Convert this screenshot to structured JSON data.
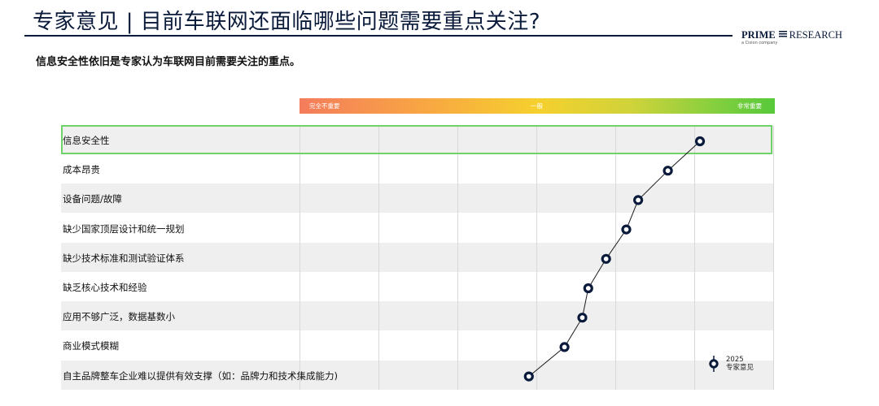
{
  "header": {
    "title": "专家意见 | 目前车联网还面临哪些问题需要重点关注?",
    "brand_bold": "PRIME",
    "brand_rest": "RESEARCH",
    "brand_sub": "a Cision company"
  },
  "subtitle": "信息安全性依旧是专家认为车联网目前需要关注的重点。",
  "scale": {
    "low_label": "完全不重要",
    "mid_label": "一般",
    "high_label": "非常重要"
  },
  "legend": {
    "year": "2025",
    "label": "专家意见"
  },
  "colors": {
    "marker": "#0a1a3a",
    "highlight": "#6fd36a"
  },
  "chart_data": {
    "type": "line",
    "title": "",
    "xlabel": "",
    "ylabel": "",
    "x_scale": "importance",
    "xlim": [
      0,
      6
    ],
    "categories": [
      "信息安全性",
      "成本昂贵",
      "设备问题/故障",
      "缺少国家顶层设计和统一规划",
      "缺少技术标准和测试验证体系",
      "缺乏核心技术和经验",
      "应用不够广泛，数据基数小",
      "商业模式模糊",
      "自主品牌整车企业难以提供有效支撑（如：品牌力和技术集成能力)"
    ],
    "series": [
      {
        "name": "专家意见",
        "year": "2025",
        "values": [
          5.37,
          5.1,
          4.85,
          4.75,
          4.58,
          4.43,
          4.38,
          4.23,
          3.93
        ]
      }
    ],
    "highlighted": "信息安全性",
    "grid": true
  }
}
